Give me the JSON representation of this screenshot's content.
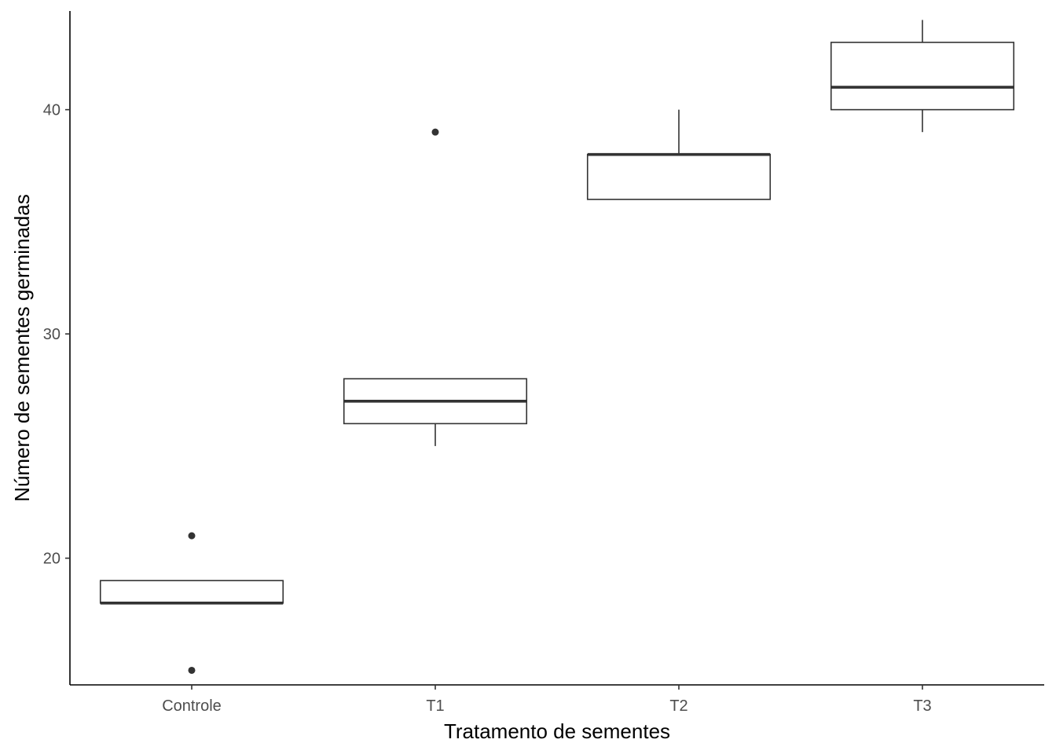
{
  "chart_data": {
    "type": "boxplot",
    "title": "",
    "xlabel": "Tratamento de sementes",
    "ylabel": "Número de sementes germinadas",
    "categories": [
      "Controle",
      "T1",
      "T2",
      "T3"
    ],
    "boxes": [
      {
        "category": "Controle",
        "whisker_low": 18,
        "q1": 18,
        "median": 18,
        "q3": 19,
        "whisker_high": 19,
        "outliers": [
          15,
          21
        ]
      },
      {
        "category": "T1",
        "whisker_low": 25,
        "q1": 26,
        "median": 27,
        "q3": 28,
        "whisker_high": 28,
        "outliers": [
          39
        ]
      },
      {
        "category": "T2",
        "whisker_low": 36,
        "q1": 36,
        "median": 38,
        "q3": 38,
        "whisker_high": 40,
        "outliers": []
      },
      {
        "category": "T3",
        "whisker_low": 39,
        "q1": 40,
        "median": 41,
        "q3": 43,
        "whisker_high": 44,
        "outliers": []
      }
    ],
    "y_ticks": [
      20,
      30,
      40
    ],
    "ylim": [
      14.35,
      44.4
    ],
    "grid": false,
    "colors": {
      "line": "#333333",
      "axis": "#000000",
      "tick_text": "#4d4d4d",
      "background": "#ffffff"
    }
  }
}
